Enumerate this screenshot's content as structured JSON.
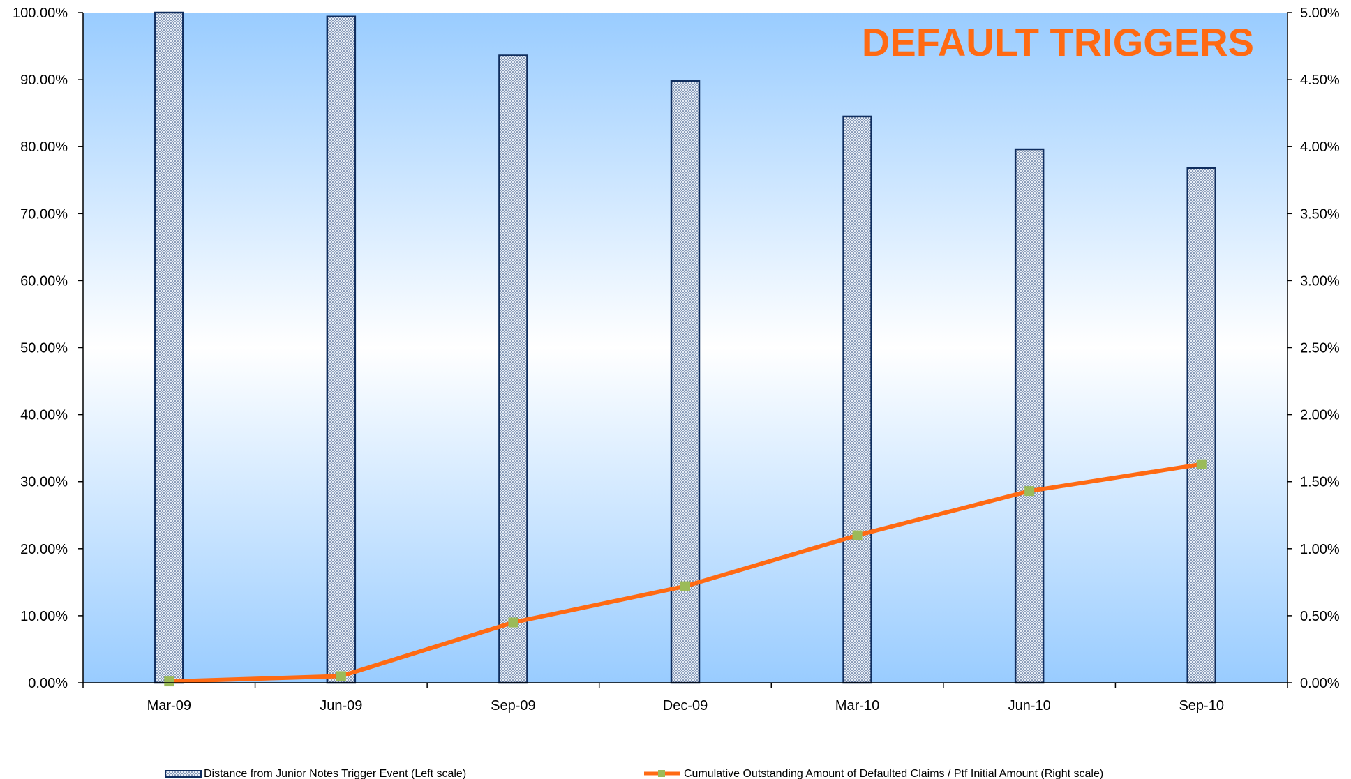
{
  "chart_data": {
    "type": "bar+line",
    "title": "DEFAULT TRIGGERS",
    "categories": [
      "Mar-09",
      "Jun-09",
      "Sep-09",
      "Dec-09",
      "Mar-10",
      "Jun-10",
      "Sep-10"
    ],
    "series": [
      {
        "name": "Distance from Junior Notes Trigger Event (Left scale)",
        "type": "bar",
        "axis": "left",
        "values": [
          100.0,
          99.4,
          93.6,
          89.8,
          84.5,
          79.6,
          76.8
        ]
      },
      {
        "name": "Cumulative Outstanding Amount of Defaulted Claims / Ptf Initial Amount (Right scale)",
        "type": "line",
        "axis": "right",
        "values": [
          0.01,
          0.05,
          0.45,
          0.72,
          1.1,
          1.43,
          1.63
        ]
      }
    ],
    "y_left": {
      "range": [
        0,
        100
      ],
      "ticks": [
        "0.00%",
        "10.00%",
        "20.00%",
        "30.00%",
        "40.00%",
        "50.00%",
        "60.00%",
        "70.00%",
        "80.00%",
        "90.00%",
        "100.00%"
      ]
    },
    "y_right": {
      "range": [
        0,
        5
      ],
      "ticks": [
        "0.00%",
        "0.50%",
        "1.00%",
        "1.50%",
        "2.00%",
        "2.50%",
        "3.00%",
        "3.50%",
        "4.00%",
        "4.50%",
        "5.00%"
      ]
    },
    "grid": false,
    "legend_position": "bottom",
    "colors": {
      "title": "#FF6A13",
      "line": "#FF6A13",
      "marker": "#9BBB59",
      "bar_border": "#0F2D5E",
      "bar_fill": "#E6ECF5",
      "bar_dots": "#1F3F73",
      "plot_bg_light": "#FFFFFF",
      "plot_bg_dark": "#99CCFF"
    }
  }
}
